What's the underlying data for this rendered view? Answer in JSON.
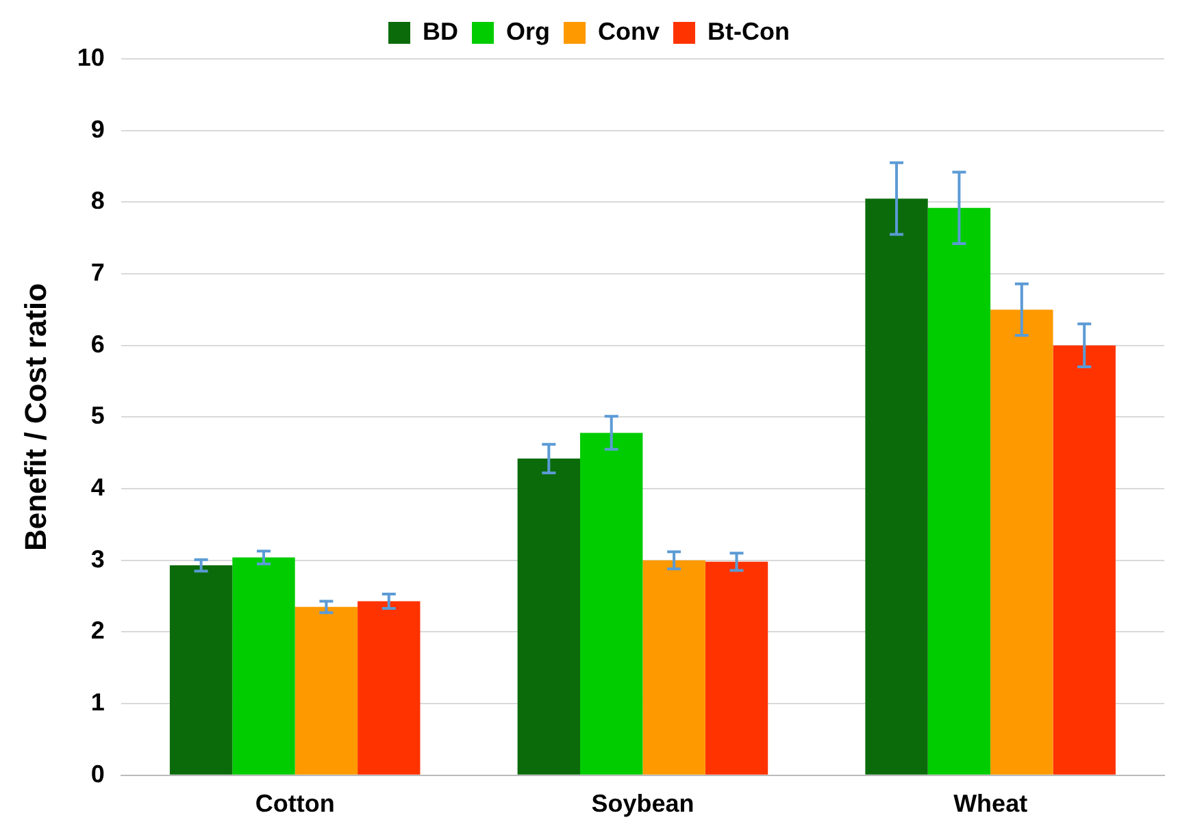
{
  "chart_data": {
    "type": "bar",
    "ylabel": "Benefit / Cost ratio",
    "categories": [
      "Cotton",
      "Soybean",
      "Wheat"
    ],
    "series": [
      {
        "name": "BD",
        "color": "#0b6b0b",
        "values": [
          2.93,
          4.42,
          8.05
        ],
        "errors": [
          0.08,
          0.2,
          0.5
        ]
      },
      {
        "name": "Org",
        "color": "#00cc00",
        "values": [
          3.04,
          4.78,
          7.92
        ],
        "errors": [
          0.09,
          0.23,
          0.5
        ]
      },
      {
        "name": "Conv",
        "color": "#ff9900",
        "values": [
          2.35,
          3.0,
          6.5
        ],
        "errors": [
          0.08,
          0.12,
          0.36
        ]
      },
      {
        "name": "Bt-Con",
        "color": "#ff3300",
        "values": [
          2.43,
          2.98,
          6.0
        ],
        "errors": [
          0.1,
          0.12,
          0.3
        ]
      }
    ],
    "ylim": [
      0,
      10
    ],
    "yticks": [
      0,
      1,
      2,
      3,
      4,
      5,
      6,
      7,
      8,
      9,
      10
    ],
    "grid": "y",
    "legend": "top"
  }
}
